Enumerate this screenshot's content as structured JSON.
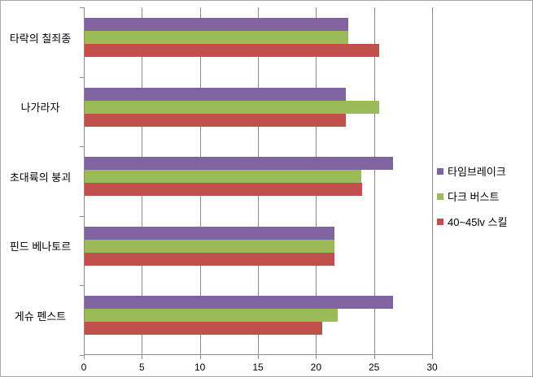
{
  "chart_data": {
    "type": "bar",
    "orientation": "horizontal",
    "title": "",
    "xlabel": "",
    "ylabel": "",
    "grid": true,
    "legend_position": "right",
    "xlim": [
      0,
      30
    ],
    "xticks": [
      0,
      5,
      10,
      15,
      20,
      25,
      30
    ],
    "categories": [
      "타락의 칠죄종",
      "나가라자",
      "초대륙의 붕괴",
      "핀드 베나토르",
      "게슈 펜스트"
    ],
    "series": [
      {
        "name": "타임브레이크",
        "color": "#8064A2",
        "values": [
          22.7,
          22.5,
          26.6,
          21.5,
          26.6
        ]
      },
      {
        "name": "다크 버스트",
        "color": "#9BBB59",
        "values": [
          22.7,
          25.4,
          23.8,
          21.5,
          21.8
        ]
      },
      {
        "name": "40~45lv 스킬",
        "color": "#C0504D",
        "values": [
          25.4,
          22.5,
          23.9,
          21.5,
          20.5
        ]
      }
    ]
  },
  "colors": {
    "background": "#FFFFFF",
    "gridline": "#8C8C8C",
    "axis_line": "#8C8C8C",
    "text": "#000000",
    "border": "#A6A6A6"
  }
}
